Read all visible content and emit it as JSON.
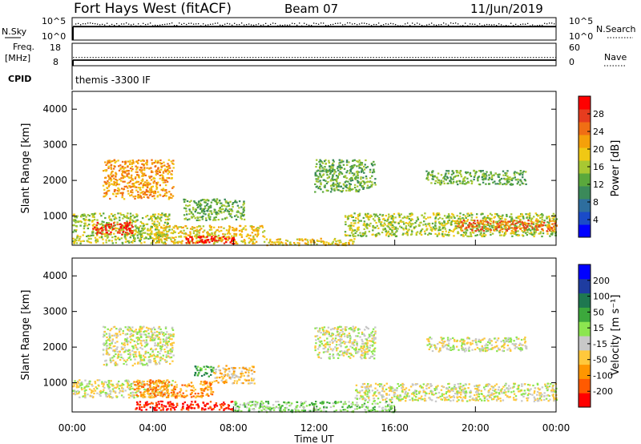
{
  "header": {
    "station": "Fort Hays West (fitACF)",
    "beam": "Beam 07",
    "date": "11/Jun/2019"
  },
  "noise_panel": {
    "left_label": "N.Sky",
    "right_label": "N.Search",
    "left_ticks": [
      "10^5",
      "10^0"
    ],
    "right_ticks": [
      "10^5",
      "10^0"
    ],
    "sky_level": 0.6,
    "search_level": 0.72
  },
  "freq_panel": {
    "left_label_1": "Freq.",
    "left_label_2": "[MHz]",
    "right_label": "Nave",
    "left_ticks": [
      "18",
      "8"
    ],
    "right_ticks": [
      "60",
      "0"
    ],
    "freq_mhz": 10.5,
    "nave": 22
  },
  "cpid_panel": {
    "label": "CPID",
    "text": "themis -3300 IF"
  },
  "time_axis": {
    "label": "Time UT",
    "ticks": [
      "00:00",
      "04:00",
      "08:00",
      "12:00",
      "16:00",
      "20:00",
      "00:00"
    ],
    "range_hours": [
      0,
      24
    ]
  },
  "range_axis": {
    "label": "Slant Range [km]",
    "ticks": [
      "1000",
      "2000",
      "3000",
      "4000"
    ],
    "ylim_km": [
      180,
      4500
    ]
  },
  "colors": {
    "power": [
      "#0000ff",
      "#1a4bc8",
      "#2e6e9e",
      "#3b8a5a",
      "#5aa83c",
      "#a8c832",
      "#f0c814",
      "#f5a00a",
      "#f06e14",
      "#e63c1e",
      "#ff0000"
    ],
    "velocity": [
      "#ff0000",
      "#ff5a00",
      "#ff9600",
      "#ffc83c",
      "#c8c8c8",
      "#8ce650",
      "#3ca83c",
      "#1e7850",
      "#1e3ca0",
      "#0000ff"
    ]
  },
  "power_colorbar": {
    "label": "Power [dB]",
    "ticks": [
      "28",
      "24",
      "20",
      "16",
      "12",
      "8",
      "4"
    ]
  },
  "velocity_colorbar": {
    "label": "Velocity [m s⁻¹]",
    "ticks": [
      "200",
      "100",
      "50",
      "15",
      "-15",
      "-50",
      "-100",
      "-200"
    ]
  },
  "chart_data": {
    "type": "heatmap",
    "x_unit": "hours UT",
    "y_unit": "km",
    "power_regions": [
      {
        "t0": 0.0,
        "t1": 4.8,
        "r0": 250,
        "r1": 1100,
        "level": 5
      },
      {
        "t0": 1.0,
        "t1": 3.0,
        "r0": 500,
        "r1": 850,
        "level": 9
      },
      {
        "t0": 1.5,
        "t1": 5.0,
        "r0": 1500,
        "r1": 2600,
        "level": 7
      },
      {
        "t0": 4.0,
        "t1": 9.5,
        "r0": 250,
        "r1": 750,
        "level": 6
      },
      {
        "t0": 5.5,
        "t1": 8.0,
        "r0": 250,
        "r1": 450,
        "level": 10
      },
      {
        "t0": 5.5,
        "t1": 8.5,
        "r0": 900,
        "r1": 1500,
        "level": 4
      },
      {
        "t0": 9.5,
        "t1": 14.0,
        "r0": 200,
        "r1": 400,
        "level": 6
      },
      {
        "t0": 12.0,
        "t1": 15.0,
        "r0": 1700,
        "r1": 2600,
        "level": 4
      },
      {
        "t0": 13.5,
        "t1": 24.0,
        "r0": 450,
        "r1": 1100,
        "level": 5
      },
      {
        "t0": 19.0,
        "t1": 24.0,
        "r0": 600,
        "r1": 900,
        "level": 8
      },
      {
        "t0": 17.5,
        "t1": 22.5,
        "r0": 1900,
        "r1": 2300,
        "level": 4
      }
    ],
    "velocity_regions": [
      {
        "t0": 0.0,
        "t1": 5.0,
        "r0": 600,
        "r1": 1100,
        "level": 4
      },
      {
        "t0": 1.5,
        "t1": 5.0,
        "r0": 1500,
        "r1": 2600,
        "level": 4
      },
      {
        "t0": 3.0,
        "t1": 8.0,
        "r0": 250,
        "r1": 500,
        "level": 0
      },
      {
        "t0": 3.0,
        "t1": 7.0,
        "r0": 600,
        "r1": 1100,
        "level": 2
      },
      {
        "t0": 6.0,
        "t1": 7.0,
        "r0": 1200,
        "r1": 1500,
        "level": 6
      },
      {
        "t0": 7.0,
        "t1": 9.0,
        "r0": 1000,
        "r1": 1500,
        "level": 3
      },
      {
        "t0": 8.0,
        "t1": 16.0,
        "r0": 200,
        "r1": 500,
        "level": 5
      },
      {
        "t0": 12.0,
        "t1": 15.0,
        "r0": 1700,
        "r1": 2600,
        "level": 4
      },
      {
        "t0": 14.0,
        "t1": 24.0,
        "r0": 500,
        "r1": 1000,
        "level": 4
      },
      {
        "t0": 17.5,
        "t1": 22.5,
        "r0": 1900,
        "r1": 2300,
        "level": 4
      }
    ]
  }
}
